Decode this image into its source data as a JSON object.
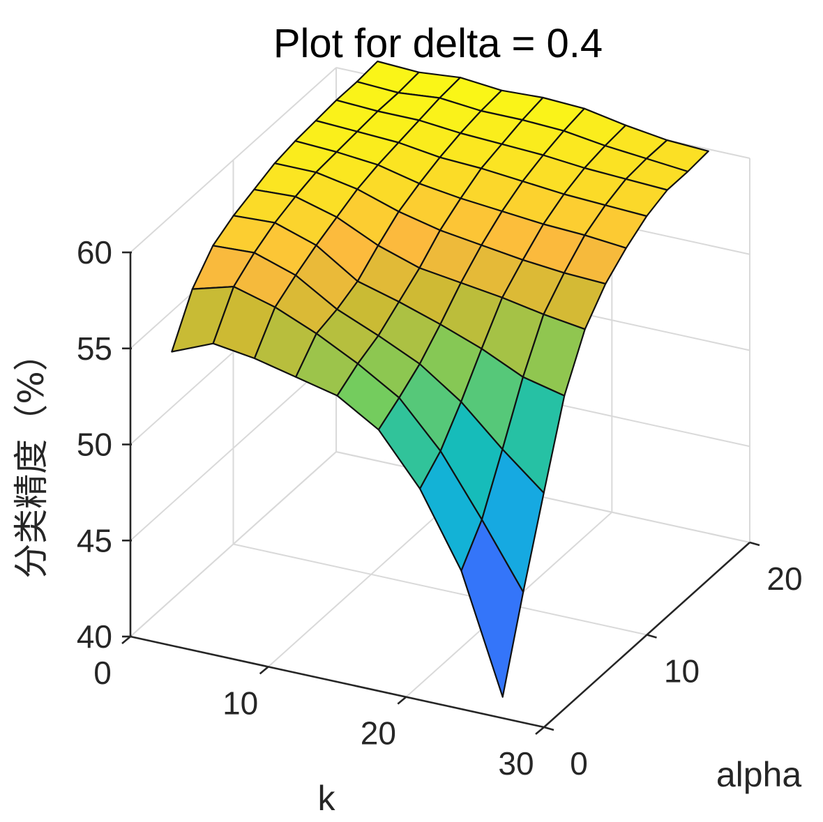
{
  "chart_data": {
    "type": "surface",
    "title": "Plot for delta = 0.4",
    "xlabel": "k",
    "ylabel": "alpha",
    "zlabel": "分类精度（%）",
    "xlim": [
      0,
      30
    ],
    "ylim": [
      0,
      20
    ],
    "zlim": [
      40,
      60
    ],
    "xticks": [
      "0",
      "10",
      "20",
      "30"
    ],
    "yticks": [
      "0",
      "10",
      "20"
    ],
    "zticks": [
      "40",
      "45",
      "50",
      "55",
      "60"
    ],
    "grid": true,
    "colormap": "parula",
    "k_values": [
      3,
      6,
      9,
      12,
      15,
      18,
      21,
      24,
      27
    ],
    "alpha_values": [
      0,
      2,
      4,
      6,
      8,
      10,
      12,
      14,
      16,
      18,
      20
    ],
    "z": [
      [
        55.3,
        57.6,
        58.9,
        59.5,
        59.9,
        60.3,
        60.5,
        60.6,
        60.7,
        60.7,
        60.8
      ],
      [
        56.2,
        58.2,
        59.0,
        59.6,
        60.0,
        60.3,
        60.4,
        60.5,
        60.6,
        60.6,
        60.7
      ],
      [
        55.9,
        57.6,
        58.3,
        58.9,
        59.4,
        59.9,
        60.2,
        60.4,
        60.6,
        60.8,
        60.9
      ],
      [
        55.4,
        56.7,
        57.0,
        57.5,
        58.4,
        59.2,
        59.7,
        60.1,
        60.4,
        60.6,
        60.7
      ],
      [
        54.9,
        55.6,
        56.1,
        56.9,
        57.7,
        58.7,
        59.4,
        60.0,
        60.3,
        60.6,
        60.8
      ],
      [
        53.6,
        54.3,
        55.1,
        56.2,
        57.4,
        58.4,
        59.2,
        59.8,
        60.2,
        60.5,
        60.7
      ],
      [
        51.0,
        52.0,
        53.6,
        55.4,
        57.1,
        58.1,
        59.0,
        59.6,
        60.0,
        60.2,
        60.3
      ],
      [
        47.2,
        48.9,
        51.6,
        54.4,
        56.7,
        57.9,
        58.9,
        59.5,
        59.9,
        60.0,
        60.0
      ],
      [
        41.1,
        45.6,
        49.8,
        53.9,
        56.4,
        57.8,
        58.7,
        59.4,
        59.8,
        59.8,
        59.9
      ]
    ]
  }
}
